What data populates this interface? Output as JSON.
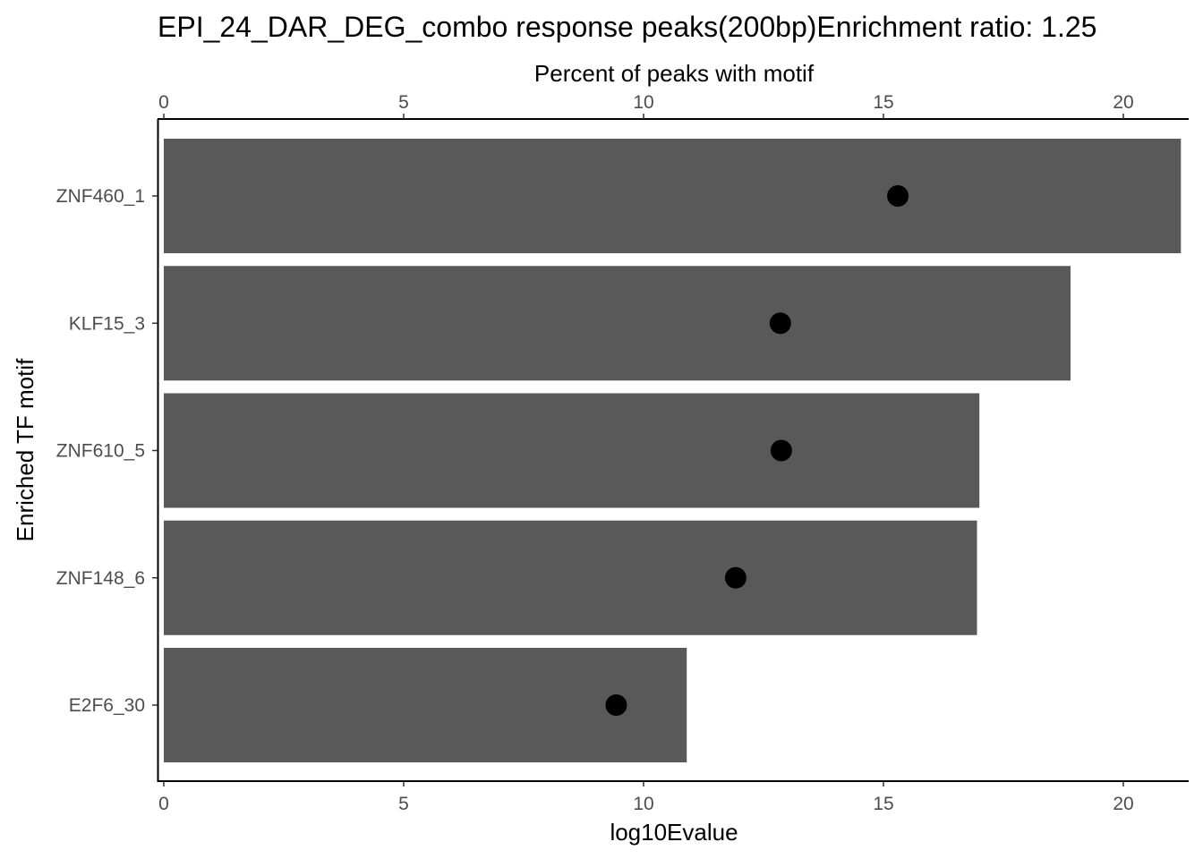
{
  "chart_data": {
    "type": "bar",
    "title": "EPI_24_DAR_DEG_combo response peaks(200bp)Enrichment ratio: 1.25",
    "xlabel": "log10Evalue",
    "x2label": "Percent of peaks with motif",
    "ylabel": "Enriched TF motif",
    "xlim": [
      0,
      21.25
    ],
    "x2lim": [
      0,
      21.25
    ],
    "xticks": [
      0,
      5,
      10,
      15,
      20
    ],
    "x2ticks": [
      0,
      5,
      10,
      15,
      20
    ],
    "categories": [
      "ZNF460_1",
      "KLF15_3",
      "ZNF610_5",
      "ZNF148_6",
      "E2F6_30"
    ],
    "series": [
      {
        "kind": "bar",
        "axis": "bottom",
        "values": [
          21.2,
          18.9,
          17.0,
          16.95,
          10.9
        ]
      },
      {
        "kind": "point",
        "axis": "top",
        "values": [
          15.3,
          12.85,
          12.87,
          11.92,
          9.43
        ]
      }
    ],
    "bar_color": "#595959",
    "point_color": "#000000",
    "grid": false,
    "legend": "none"
  }
}
